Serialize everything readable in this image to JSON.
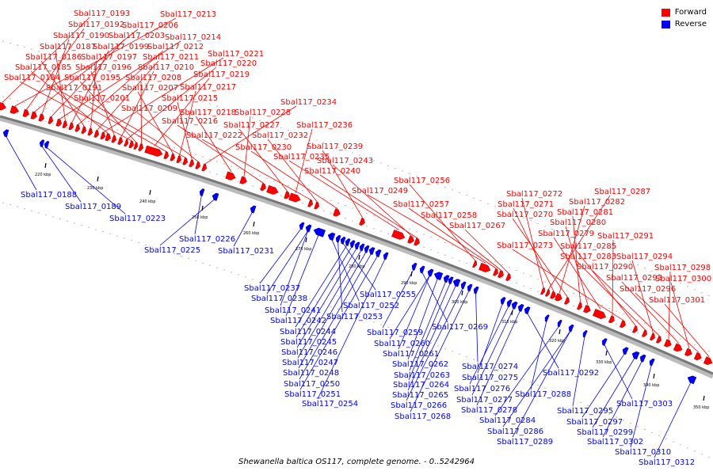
{
  "legend": {
    "forward_label": "Forward",
    "reverse_label": "Reverse",
    "forward_color": "#ff0000",
    "reverse_color": "#0000ff"
  },
  "caption": "Shewanella baltica OS117, complete genome. - 0..5242964",
  "ticks": [
    "220 kbp",
    "230 kbp",
    "240 kbp",
    "250 kbp",
    "260 kbp",
    "270 kbp",
    "280 kbp",
    "290 kbp",
    "300 kbp",
    "310 kbp",
    "320 kbp",
    "330 kbp",
    "340 kbp",
    "350 kbp"
  ],
  "forward_labels": [
    "Sbal117_0193",
    "Sbal117_0213",
    "Sbal117_0192",
    "Sbal117_0206",
    "Sbal117_0190",
    "Sbal117_0203",
    "Sbal117_0214",
    "Sbal117_0187",
    "Sbal117_0199",
    "Sbal117_0212",
    "Sbal117_0186",
    "Sbal117_0197",
    "Sbal117_0211",
    "Sbal117_0221",
    "Sbal117_0185",
    "Sbal117_0196",
    "Sbal117_0210",
    "Sbal117_0220",
    "Sbal117_0184",
    "Sbal117_0195",
    "Sbal117_0208",
    "Sbal117_0219",
    "Sbal117_0191",
    "Sbal117_0207",
    "Sbal117_0217",
    "Sbal117_0201",
    "Sbal117_0215",
    "Sbal117_0209",
    "Sbal117_0234",
    "Sbal117_0218",
    "Sbal117_0228",
    "Sbal117_0216",
    "Sbal117_0227",
    "Sbal117_0236",
    "Sbal117_0222",
    "Sbal117_0232",
    "Sbal117_0230",
    "Sbal117_0239",
    "Sbal117_0235",
    "Sbal117_0243",
    "Sbal117_0240",
    "Sbal117_0256",
    "Sbal117_0249",
    "Sbal117_0257",
    "Sbal117_0258",
    "Sbal117_0267",
    "Sbal117_0272",
    "Sbal117_0287",
    "Sbal117_0271",
    "Sbal117_0282",
    "Sbal117_0270",
    "Sbal117_0281",
    "Sbal117_0280",
    "Sbal117_0279",
    "Sbal117_0291",
    "Sbal117_0273",
    "Sbal117_0285",
    "Sbal117_0283",
    "Sbal117_0294",
    "Sbal117_0290",
    "Sbal117_0298",
    "Sbal117_0293",
    "Sbal117_0300",
    "Sbal117_0296",
    "Sbal117_0301"
  ],
  "reverse_labels": [
    "Sbal117_0188",
    "Sbal117_0189",
    "Sbal117_0223",
    "Sbal117_0226",
    "Sbal117_0225",
    "Sbal117_0231",
    "Sbal117_0237",
    "Sbal117_0238",
    "Sbal117_0241",
    "Sbal117_0242",
    "Sbal117_0252",
    "Sbal117_0253",
    "Sbal117_0255",
    "Sbal117_0244",
    "Sbal117_0245",
    "Sbal117_0246",
    "Sbal117_0247",
    "Sbal117_0248",
    "Sbal117_0250",
    "Sbal117_0251",
    "Sbal117_0254",
    "Sbal117_0259",
    "Sbal117_0269",
    "Sbal117_0260",
    "Sbal117_0261",
    "Sbal117_0262",
    "Sbal117_0263",
    "Sbal117_0264",
    "Sbal117_0265",
    "Sbal117_0266",
    "Sbal117_0268",
    "Sbal117_0274",
    "Sbal117_0275",
    "Sbal117_0276",
    "Sbal117_0277",
    "Sbal117_0278",
    "Sbal117_0292",
    "Sbal117_0288",
    "Sbal117_0284",
    "Sbal117_0286",
    "Sbal117_0289",
    "Sbal117_0295",
    "Sbal117_0303",
    "Sbal117_0297",
    "Sbal117_0299",
    "Sbal117_0302",
    "Sbal117_0310",
    "Sbal117_0312"
  ]
}
